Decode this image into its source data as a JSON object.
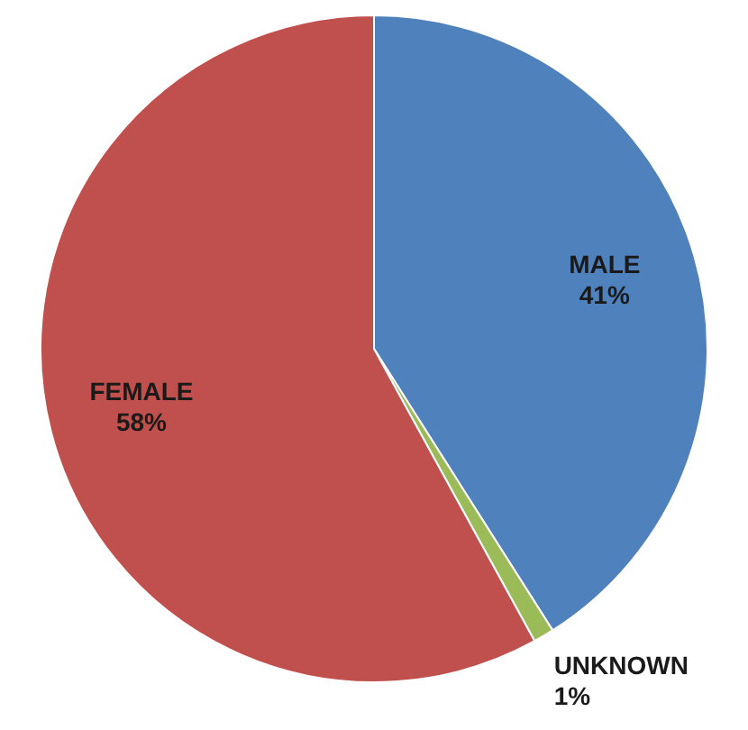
{
  "chart_data": {
    "type": "pie",
    "categories": [
      "MALE",
      "UNKNOWN",
      "FEMALE"
    ],
    "values": [
      41,
      1,
      58
    ],
    "colors": [
      "#4f81bd",
      "#9bbb59",
      "#c0504d"
    ],
    "value_labels": [
      "41%",
      "1%",
      "58%"
    ],
    "legend": false
  }
}
